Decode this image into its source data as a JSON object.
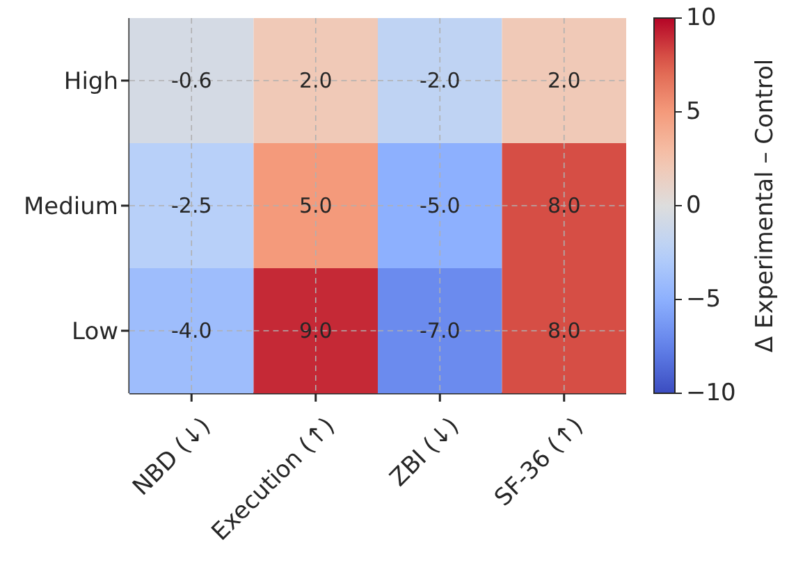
{
  "chart_data": {
    "type": "heatmap",
    "categories": [
      "NBD (↓)",
      "Execution (↑)",
      "ZBI (↓)",
      "SF-36 (↑)"
    ],
    "y_categories": [
      "High",
      "Medium",
      "Low"
    ],
    "cells": [
      [
        -0.6,
        2.0,
        -2.0,
        2.0
      ],
      [
        -2.5,
        5.0,
        -5.0,
        8.0
      ],
      [
        -4.0,
        9.0,
        -7.0,
        8.0
      ]
    ],
    "cell_labels": [
      [
        "-0.6",
        "2.0",
        "-2.0",
        "2.0"
      ],
      [
        "-2.5",
        "5.0",
        "-5.0",
        "8.0"
      ],
      [
        "-4.0",
        "9.0",
        "-7.0",
        "8.0"
      ]
    ],
    "clim": [
      -10,
      10
    ],
    "cticks": [
      {
        "value": -10,
        "label": "−10"
      },
      {
        "value": -5,
        "label": "−5"
      },
      0,
      5,
      10
    ],
    "clabel": "Δ Experimental – Control",
    "grid": true
  }
}
